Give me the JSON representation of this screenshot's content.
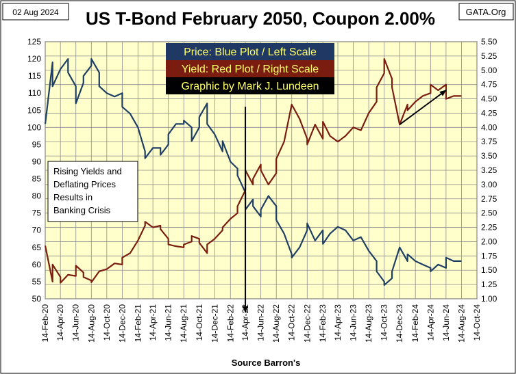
{
  "header": {
    "date": "02 Aug 2024",
    "title": "US T-Bond February 2050, Coupon 2.00%",
    "source_tag": "GATA.Org"
  },
  "legend": [
    {
      "text": "Price:  Blue Plot / Left Scale",
      "bg": "#1f3864",
      "fg": "#ffff66"
    },
    {
      "text": "Yield:  Red Plot / Right Scale",
      "bg": "#7b1c10",
      "fg": "#ffff66"
    },
    {
      "text": "Graphic by Mark J. Lundeen",
      "bg": "#000000",
      "fg": "#ffff66"
    }
  ],
  "note": [
    "Rising Yields and",
    "Deflating Prices",
    "Results in",
    "Banking Crisis"
  ],
  "footer": {
    "source": "Source Barron's"
  },
  "colors": {
    "plot_bg": "#ffffcc",
    "grid": "#8c8c8c",
    "price": "#1f3e64",
    "yield": "#7b1c10",
    "arrow": "#000000"
  },
  "chart_data": {
    "type": "line",
    "title": "US T-Bond February 2050, Coupon 2.00%",
    "left_axis": {
      "ylim": [
        50,
        125
      ],
      "ticks": [
        50,
        55,
        60,
        65,
        70,
        75,
        80,
        85,
        90,
        95,
        100,
        105,
        110,
        115,
        120,
        125
      ]
    },
    "right_axis": {
      "ylim": [
        1.0,
        5.5
      ],
      "ticks": [
        "1.00",
        "1.25",
        "1.50",
        "1.75",
        "2.00",
        "2.25",
        "2.50",
        "2.75",
        "3.00",
        "3.25",
        "3.50",
        "3.75",
        "4.00",
        "4.25",
        "4.50",
        "4.75",
        "5.00",
        "5.25",
        "5.50"
      ]
    },
    "x_ticks": [
      "14-Feb-20",
      "14-Apr-20",
      "14-Jun-20",
      "14-Aug-20",
      "14-Oct-20",
      "14-Dec-20",
      "14-Feb-21",
      "14-Apr-21",
      "14-Jun-21",
      "14-Aug-21",
      "14-Oct-21",
      "14-Dec-21",
      "14-Feb-22",
      "14-Apr-22",
      "14-Jun-22",
      "14-Aug-22",
      "14-Oct-22",
      "14-Dec-22",
      "14-Feb-23",
      "14-Apr-23",
      "14-Jun-23",
      "14-Aug-23",
      "14-Oct-23",
      "14-Dec-23",
      "14-Feb-24",
      "14-Apr-24",
      "14-Jun-24",
      "14-Aug-24",
      "14-Oct-24"
    ],
    "grid": true,
    "series": [
      {
        "axis": "left",
        "points": [
          [
            "14-Feb-20",
            101
          ],
          [
            "14-Mar-20",
            119
          ],
          [
            "14-Mar-20",
            112
          ],
          [
            "14-Apr-20",
            117
          ],
          [
            "14-May-20",
            120
          ],
          [
            "14-May-20",
            116
          ],
          [
            "14-Jun-20",
            112
          ],
          [
            "14-Jun-20",
            107
          ],
          [
            "14-Jul-20",
            113
          ],
          [
            "14-Jul-20",
            115
          ],
          [
            "14-Aug-20",
            118
          ],
          [
            "14-Aug-20",
            120
          ],
          [
            "14-Sep-20",
            116
          ],
          [
            "14-Sep-20",
            112
          ],
          [
            "14-Oct-20",
            110
          ],
          [
            "14-Nov-20",
            109
          ],
          [
            "14-Dec-20",
            110
          ],
          [
            "14-Dec-20",
            106
          ],
          [
            "14-Jan-21",
            104
          ],
          [
            "14-Feb-21",
            100
          ],
          [
            "14-Mar-21",
            93
          ],
          [
            "14-Mar-21",
            91
          ],
          [
            "14-Apr-21",
            94
          ],
          [
            "14-May-21",
            94
          ],
          [
            "14-May-21",
            92
          ],
          [
            "14-Jun-21",
            95
          ],
          [
            "14-Jun-21",
            98
          ],
          [
            "14-Jul-21",
            101
          ],
          [
            "14-Aug-21",
            101
          ],
          [
            "14-Aug-21",
            102
          ],
          [
            "14-Sep-21",
            100
          ],
          [
            "14-Sep-21",
            96
          ],
          [
            "14-Oct-21",
            100
          ],
          [
            "14-Oct-21",
            103
          ],
          [
            "14-Nov-21",
            107
          ],
          [
            "14-Nov-21",
            101
          ],
          [
            "14-Dec-21",
            98
          ],
          [
            "14-Jan-22",
            93
          ],
          [
            "14-Jan-22",
            96
          ],
          [
            "14-Feb-22",
            90
          ],
          [
            "14-Mar-22",
            88
          ],
          [
            "14-Mar-22",
            86
          ],
          [
            "14-Apr-22",
            81
          ],
          [
            "14-Apr-22",
            76
          ],
          [
            "14-May-22",
            79
          ],
          [
            "14-May-22",
            77
          ],
          [
            "14-Jun-22",
            74
          ],
          [
            "14-Jun-22",
            76
          ],
          [
            "14-Jul-22",
            80
          ],
          [
            "14-Aug-22",
            77
          ],
          [
            "14-Aug-22",
            73
          ],
          [
            "14-Sep-22",
            69
          ],
          [
            "14-Oct-22",
            63
          ],
          [
            "14-Oct-22",
            62
          ],
          [
            "14-Nov-22",
            65
          ],
          [
            "14-Dec-22",
            70
          ],
          [
            "14-Dec-22",
            72
          ],
          [
            "14-Jan-23",
            67
          ],
          [
            "14-Feb-23",
            70
          ],
          [
            "14-Feb-23",
            66
          ],
          [
            "14-Mar-23",
            69
          ],
          [
            "14-Apr-23",
            71
          ],
          [
            "14-May-23",
            70
          ],
          [
            "14-Jun-23",
            67
          ],
          [
            "14-Jul-23",
            68
          ],
          [
            "14-Aug-23",
            64
          ],
          [
            "14-Sep-23",
            61
          ],
          [
            "14-Sep-23",
            58
          ],
          [
            "14-Oct-23",
            55
          ],
          [
            "14-Oct-23",
            54
          ],
          [
            "14-Nov-23",
            56
          ],
          [
            "14-Nov-23",
            58
          ],
          [
            "14-Dec-23",
            65
          ],
          [
            "14-Jan-24",
            61
          ],
          [
            "14-Jan-24",
            63
          ],
          [
            "14-Feb-24",
            61
          ],
          [
            "14-Mar-24",
            60
          ],
          [
            "14-Apr-24",
            59
          ],
          [
            "14-Apr-24",
            58
          ],
          [
            "14-May-24",
            60
          ],
          [
            "14-Jun-24",
            59
          ],
          [
            "14-Jun-24",
            62
          ],
          [
            "14-Jul-24",
            61
          ],
          [
            "14-Aug-24",
            61
          ]
        ]
      },
      {
        "axis": "right",
        "points": [
          [
            "14-Feb-20",
            1.93
          ],
          [
            "14-Mar-20",
            1.3
          ],
          [
            "14-Mar-20",
            1.6
          ],
          [
            "14-Apr-20",
            1.38
          ],
          [
            "14-Apr-20",
            1.28
          ],
          [
            "14-May-20",
            1.42
          ],
          [
            "14-Jun-20",
            1.4
          ],
          [
            "14-Jun-20",
            1.58
          ],
          [
            "14-Jul-20",
            1.46
          ],
          [
            "14-Jul-20",
            1.38
          ],
          [
            "14-Aug-20",
            1.32
          ],
          [
            "14-Aug-20",
            1.29
          ],
          [
            "14-Sep-20",
            1.48
          ],
          [
            "14-Oct-20",
            1.52
          ],
          [
            "14-Nov-20",
            1.62
          ],
          [
            "14-Dec-20",
            1.6
          ],
          [
            "14-Dec-20",
            1.72
          ],
          [
            "14-Jan-21",
            1.8
          ],
          [
            "14-Feb-21",
            2.02
          ],
          [
            "14-Mar-21",
            2.28
          ],
          [
            "14-Mar-21",
            2.35
          ],
          [
            "14-Apr-21",
            2.25
          ],
          [
            "14-May-21",
            2.28
          ],
          [
            "14-May-21",
            2.22
          ],
          [
            "14-Jun-21",
            2.05
          ],
          [
            "14-Jun-21",
            1.95
          ],
          [
            "14-Jul-21",
            1.92
          ],
          [
            "14-Aug-21",
            1.9
          ],
          [
            "14-Aug-21",
            1.95
          ],
          [
            "14-Sep-21",
            2.0
          ],
          [
            "14-Sep-21",
            2.1
          ],
          [
            "14-Oct-21",
            2.05
          ],
          [
            "14-Oct-21",
            1.98
          ],
          [
            "14-Nov-21",
            1.8
          ],
          [
            "14-Nov-21",
            1.95
          ],
          [
            "14-Dec-21",
            2.05
          ],
          [
            "14-Jan-22",
            2.2
          ],
          [
            "14-Jan-22",
            2.25
          ],
          [
            "14-Feb-22",
            2.4
          ],
          [
            "14-Mar-22",
            2.5
          ],
          [
            "14-Mar-22",
            2.62
          ],
          [
            "14-Apr-22",
            2.9
          ],
          [
            "14-Apr-22",
            3.25
          ],
          [
            "14-May-22",
            3.0
          ],
          [
            "14-May-22",
            3.1
          ],
          [
            "14-Jun-22",
            3.35
          ],
          [
            "14-Jun-22",
            3.25
          ],
          [
            "14-Jul-22",
            3.0
          ],
          [
            "14-Aug-22",
            3.2
          ],
          [
            "14-Aug-22",
            3.45
          ],
          [
            "14-Sep-22",
            3.75
          ],
          [
            "14-Oct-22",
            4.4
          ],
          [
            "14-Oct-22",
            4.4
          ],
          [
            "14-Nov-22",
            4.15
          ],
          [
            "14-Dec-22",
            3.8
          ],
          [
            "14-Dec-22",
            3.7
          ],
          [
            "14-Jan-23",
            4.05
          ],
          [
            "14-Feb-23",
            3.8
          ],
          [
            "14-Feb-23",
            4.1
          ],
          [
            "14-Mar-23",
            3.85
          ],
          [
            "14-Apr-23",
            3.75
          ],
          [
            "14-May-23",
            3.85
          ],
          [
            "14-Jun-23",
            4.0
          ],
          [
            "14-Jul-23",
            3.95
          ],
          [
            "14-Aug-23",
            4.25
          ],
          [
            "14-Sep-23",
            4.45
          ],
          [
            "14-Sep-23",
            4.7
          ],
          [
            "14-Oct-23",
            4.95
          ],
          [
            "14-Oct-23",
            5.2
          ],
          [
            "14-Nov-23",
            4.85
          ],
          [
            "14-Nov-23",
            4.7
          ],
          [
            "14-Dec-23",
            4.05
          ],
          [
            "14-Jan-24",
            4.4
          ],
          [
            "14-Jan-24",
            4.3
          ],
          [
            "14-Feb-24",
            4.45
          ],
          [
            "14-Mar-24",
            4.55
          ],
          [
            "14-Apr-24",
            4.6
          ],
          [
            "14-Apr-24",
            4.75
          ],
          [
            "14-May-24",
            4.65
          ],
          [
            "14-Jun-24",
            4.75
          ],
          [
            "14-Jun-24",
            4.5
          ],
          [
            "14-Jul-24",
            4.55
          ],
          [
            "14-Aug-24",
            4.55
          ]
        ]
      }
    ],
    "annotations": [
      {
        "type": "vertical-arrow",
        "x": "14-Apr-22"
      },
      {
        "type": "arrow",
        "from": [
          "14-Dec-23",
          4.05
        ],
        "to": [
          "14-Jun-24",
          4.65
        ],
        "axis": "right"
      }
    ]
  }
}
